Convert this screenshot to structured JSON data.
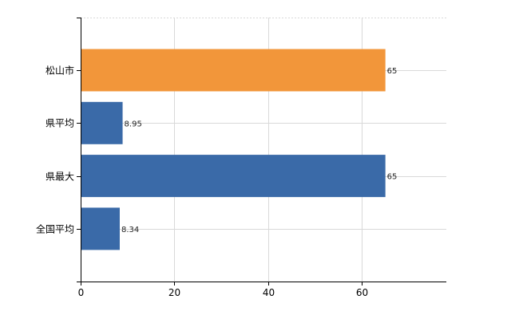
{
  "chart_data": {
    "type": "bar",
    "orientation": "horizontal",
    "categories": [
      "松山市",
      "県平均",
      "県最大",
      "全国平均"
    ],
    "values": [
      65,
      8.95,
      65,
      8.34
    ],
    "value_labels": [
      "65",
      "8.95",
      "65",
      "8.34"
    ],
    "bar_colors": [
      "#f2963a",
      "#3a6aa8",
      "#3a6aa8",
      "#3a6aa8"
    ],
    "xlim": [
      0,
      78
    ],
    "xticks": [
      0,
      20,
      40,
      60
    ],
    "xtick_labels": [
      "0",
      "20",
      "40",
      "60"
    ],
    "grid": true,
    "legend": "none"
  }
}
